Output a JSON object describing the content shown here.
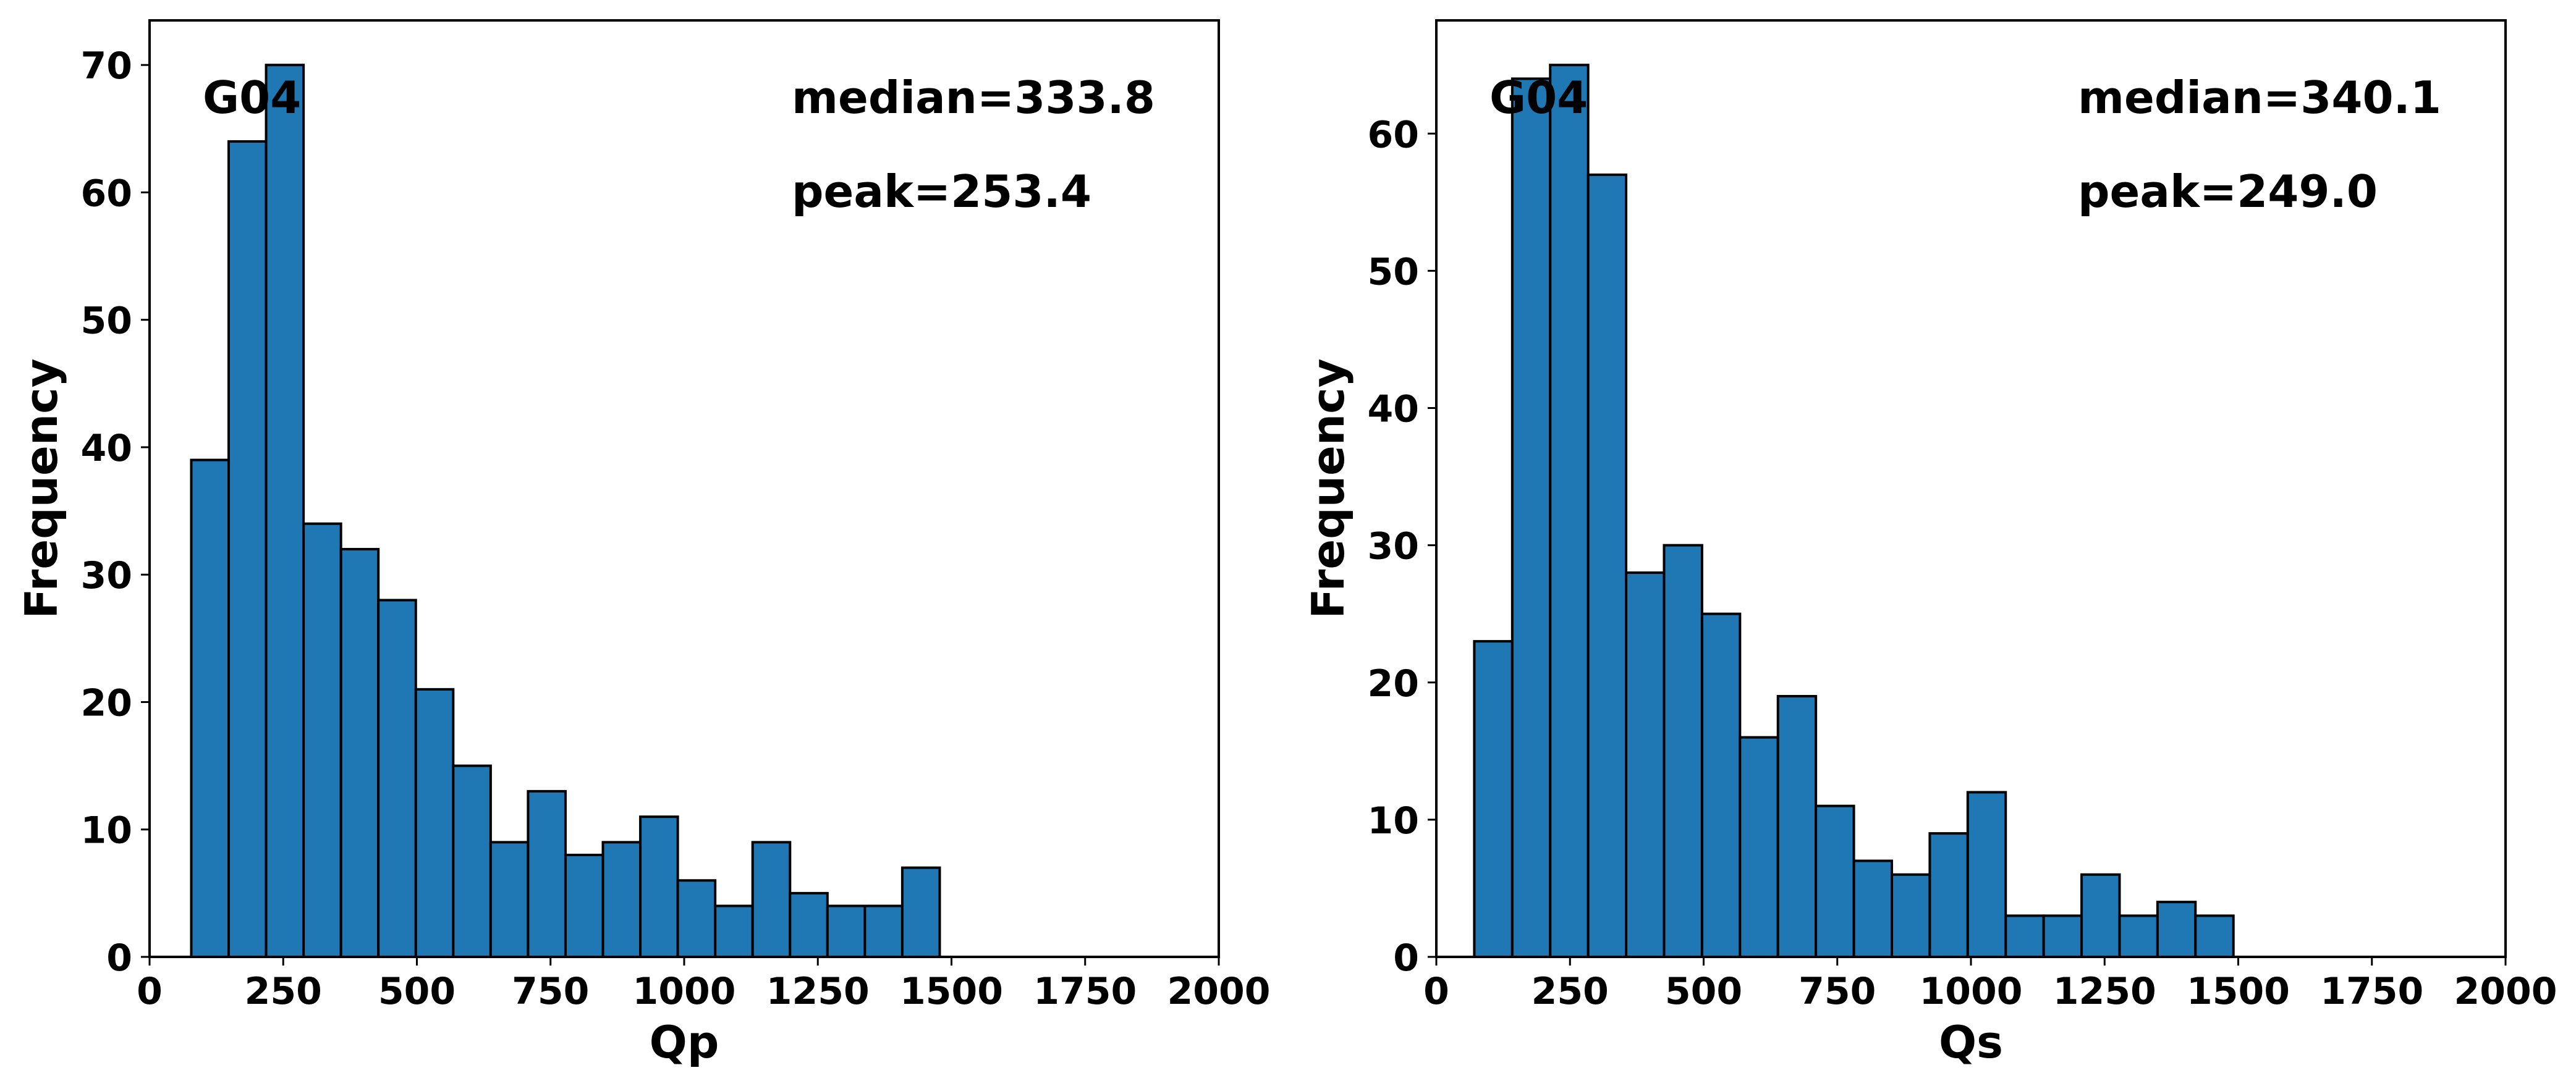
{
  "figure": {
    "bar_color": "#1f77b4",
    "edge_color": "#000000"
  },
  "chart_data": [
    {
      "type": "bar",
      "title": "",
      "xlabel": "Qp",
      "ylabel": "Frequency",
      "xlim": [
        0,
        2000
      ],
      "ylim": [
        0,
        73.5
      ],
      "xticks": [
        0,
        250,
        500,
        750,
        1000,
        1250,
        1500,
        1750,
        2000
      ],
      "yticks": [
        0,
        10,
        20,
        30,
        40,
        50,
        60,
        70
      ],
      "grid": false,
      "bins": [
        {
          "x0": 78,
          "x1": 148,
          "value": 39
        },
        {
          "x0": 148,
          "x1": 218,
          "value": 64
        },
        {
          "x0": 218,
          "x1": 288,
          "value": 70
        },
        {
          "x0": 288,
          "x1": 358,
          "value": 34
        },
        {
          "x0": 358,
          "x1": 428,
          "value": 32
        },
        {
          "x0": 428,
          "x1": 498,
          "value": 28
        },
        {
          "x0": 498,
          "x1": 568,
          "value": 21
        },
        {
          "x0": 568,
          "x1": 638,
          "value": 15
        },
        {
          "x0": 638,
          "x1": 708,
          "value": 9
        },
        {
          "x0": 708,
          "x1": 778,
          "value": 13
        },
        {
          "x0": 778,
          "x1": 848,
          "value": 8
        },
        {
          "x0": 848,
          "x1": 918,
          "value": 9
        },
        {
          "x0": 918,
          "x1": 988,
          "value": 11
        },
        {
          "x0": 988,
          "x1": 1058,
          "value": 6
        },
        {
          "x0": 1058,
          "x1": 1128,
          "value": 4
        },
        {
          "x0": 1128,
          "x1": 1198,
          "value": 9
        },
        {
          "x0": 1198,
          "x1": 1268,
          "value": 5
        },
        {
          "x0": 1268,
          "x1": 1338,
          "value": 4
        },
        {
          "x0": 1338,
          "x1": 1408,
          "value": 4
        },
        {
          "x0": 1408,
          "x1": 1478,
          "value": 7
        }
      ],
      "annotations": {
        "station": "G04",
        "median": "median=333.8",
        "peak": "peak=253.4"
      }
    },
    {
      "type": "bar",
      "title": "",
      "xlabel": "Qs",
      "ylabel": "Frequency",
      "xlim": [
        0,
        2000
      ],
      "ylim": [
        0,
        68.25
      ],
      "xticks": [
        0,
        250,
        500,
        750,
        1000,
        1250,
        1500,
        1750,
        2000
      ],
      "yticks": [
        0,
        10,
        20,
        30,
        40,
        50,
        60
      ],
      "grid": false,
      "bins": [
        {
          "x0": 71,
          "x1": 142,
          "value": 23
        },
        {
          "x0": 142,
          "x1": 213,
          "value": 64
        },
        {
          "x0": 213,
          "x1": 284,
          "value": 65
        },
        {
          "x0": 284,
          "x1": 355,
          "value": 57
        },
        {
          "x0": 355,
          "x1": 426,
          "value": 28
        },
        {
          "x0": 426,
          "x1": 497,
          "value": 30
        },
        {
          "x0": 497,
          "x1": 568,
          "value": 25
        },
        {
          "x0": 568,
          "x1": 639,
          "value": 16
        },
        {
          "x0": 639,
          "x1": 710,
          "value": 19
        },
        {
          "x0": 710,
          "x1": 781,
          "value": 11
        },
        {
          "x0": 781,
          "x1": 852,
          "value": 7
        },
        {
          "x0": 852,
          "x1": 923,
          "value": 6
        },
        {
          "x0": 923,
          "x1": 994,
          "value": 9
        },
        {
          "x0": 994,
          "x1": 1065,
          "value": 12
        },
        {
          "x0": 1065,
          "x1": 1136,
          "value": 3
        },
        {
          "x0": 1136,
          "x1": 1207,
          "value": 3
        },
        {
          "x0": 1207,
          "x1": 1278,
          "value": 6
        },
        {
          "x0": 1278,
          "x1": 1349,
          "value": 3
        },
        {
          "x0": 1349,
          "x1": 1420,
          "value": 4
        },
        {
          "x0": 1420,
          "x1": 1491,
          "value": 3
        }
      ],
      "annotations": {
        "station": "G04",
        "median": "median=340.1",
        "peak": "peak=249.0"
      }
    }
  ]
}
